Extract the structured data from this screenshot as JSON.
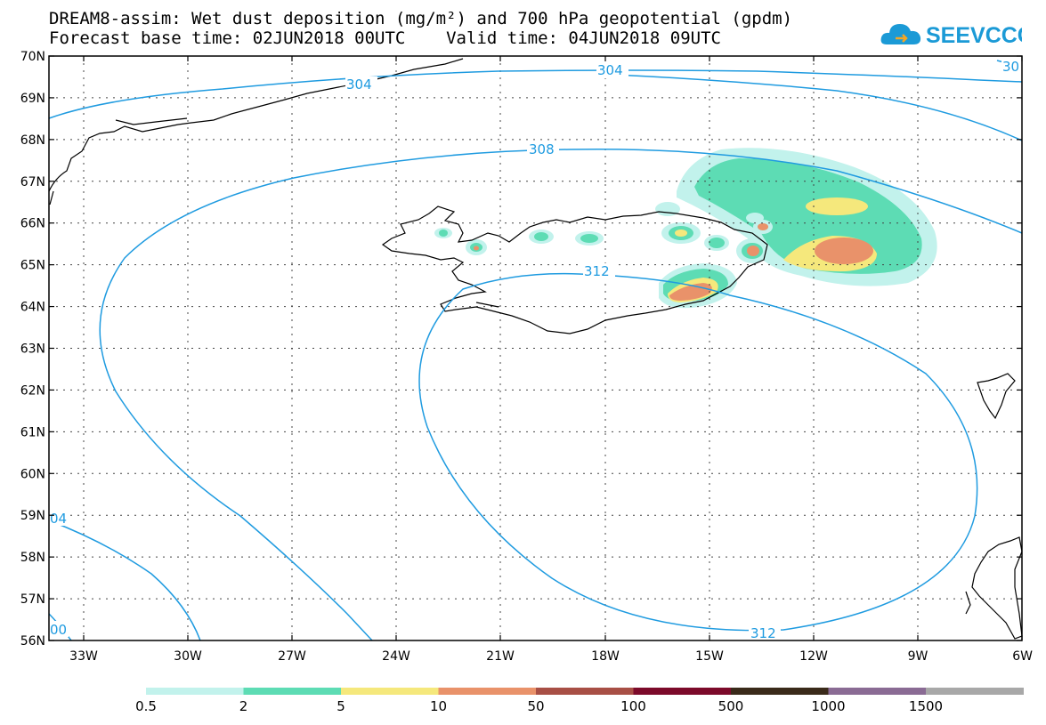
{
  "title": {
    "line1": "DREAM8-assim: Wet dust deposition (mg/m²) and 700 hPa geopotential (gpdm)",
    "line2": "Forecast base time: 02JUN2018 00UTC    Valid time: 04JUN2018 09UTC"
  },
  "logo": {
    "text": "SEEVCCC",
    "icon": "cloud-icon",
    "color": "#1b9ad6"
  },
  "axes": {
    "lon_labels": [
      "33W",
      "30W",
      "27W",
      "24W",
      "21W",
      "18W",
      "15W",
      "12W",
      "9W",
      "6W"
    ],
    "lat_labels": [
      "70N",
      "69N",
      "68N",
      "67N",
      "66N",
      "65N",
      "64N",
      "63N",
      "62N",
      "61N",
      "60N",
      "59N",
      "58N",
      "57N",
      "56N"
    ]
  },
  "contours": {
    "labels": [
      "304",
      "304",
      "30",
      "308",
      "312",
      "312",
      "04",
      "00"
    ],
    "color": "#1f9be0"
  },
  "legend": {
    "colors": [
      "#c2f2ec",
      "#5ddcb4",
      "#f5e87c",
      "#e9926a",
      "#a84f45",
      "#7c0a2a",
      "#3a2a1a",
      "#8a6b94",
      "#a8a8a8"
    ],
    "labels": [
      "0.5",
      "2",
      "5",
      "10",
      "50",
      "100",
      "500",
      "1000",
      "1500"
    ]
  },
  "colors": {
    "coast": "#000000",
    "grid": "#444444",
    "contour": "#1f9be0"
  }
}
